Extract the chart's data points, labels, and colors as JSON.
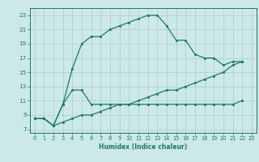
{
  "xlabel": "Humidex (Indice chaleur)",
  "ylabel": "",
  "background_color": "#cce8e8",
  "grid_color": "#aacece",
  "line_color": "#1a7a6a",
  "xlim": [
    -0.5,
    23.5
  ],
  "ylim": [
    6.5,
    24.0
  ],
  "xticks": [
    0,
    1,
    2,
    3,
    4,
    5,
    6,
    7,
    8,
    9,
    10,
    11,
    12,
    13,
    14,
    15,
    16,
    17,
    18,
    19,
    20,
    21,
    22,
    23
  ],
  "yticks": [
    7,
    9,
    11,
    13,
    15,
    17,
    19,
    21,
    23
  ],
  "series1_x": [
    0,
    1,
    2,
    3,
    4,
    5,
    6,
    7,
    8,
    9,
    10,
    11,
    12,
    13,
    14,
    15,
    16,
    17,
    18,
    19,
    20,
    21,
    22
  ],
  "series1_y": [
    8.5,
    8.5,
    7.5,
    10.5,
    15.5,
    19.0,
    20.0,
    20.0,
    21.0,
    21.5,
    22.0,
    22.5,
    23.0,
    23.0,
    21.5,
    19.5,
    19.5,
    17.5,
    17.0,
    17.0,
    16.0,
    16.5,
    16.5
  ],
  "series2_x": [
    0,
    1,
    2,
    3,
    4,
    5,
    6,
    7,
    8,
    9,
    10,
    11,
    12,
    13,
    14,
    15,
    16,
    17,
    18,
    19,
    20,
    21,
    22
  ],
  "series2_y": [
    8.5,
    8.5,
    7.5,
    10.5,
    12.5,
    12.5,
    10.5,
    10.5,
    10.5,
    10.5,
    10.5,
    10.5,
    10.5,
    10.5,
    10.5,
    10.5,
    10.5,
    10.5,
    10.5,
    10.5,
    10.5,
    10.5,
    11.0
  ],
  "series3_x": [
    0,
    1,
    2,
    3,
    4,
    5,
    6,
    7,
    8,
    9,
    10,
    11,
    12,
    13,
    14,
    15,
    16,
    17,
    18,
    19,
    20,
    21,
    22
  ],
  "series3_y": [
    8.5,
    8.5,
    7.5,
    8.0,
    8.5,
    9.0,
    9.0,
    9.5,
    10.0,
    10.5,
    10.5,
    11.0,
    11.5,
    12.0,
    12.5,
    12.5,
    13.0,
    13.5,
    14.0,
    14.5,
    15.0,
    16.0,
    16.5
  ]
}
